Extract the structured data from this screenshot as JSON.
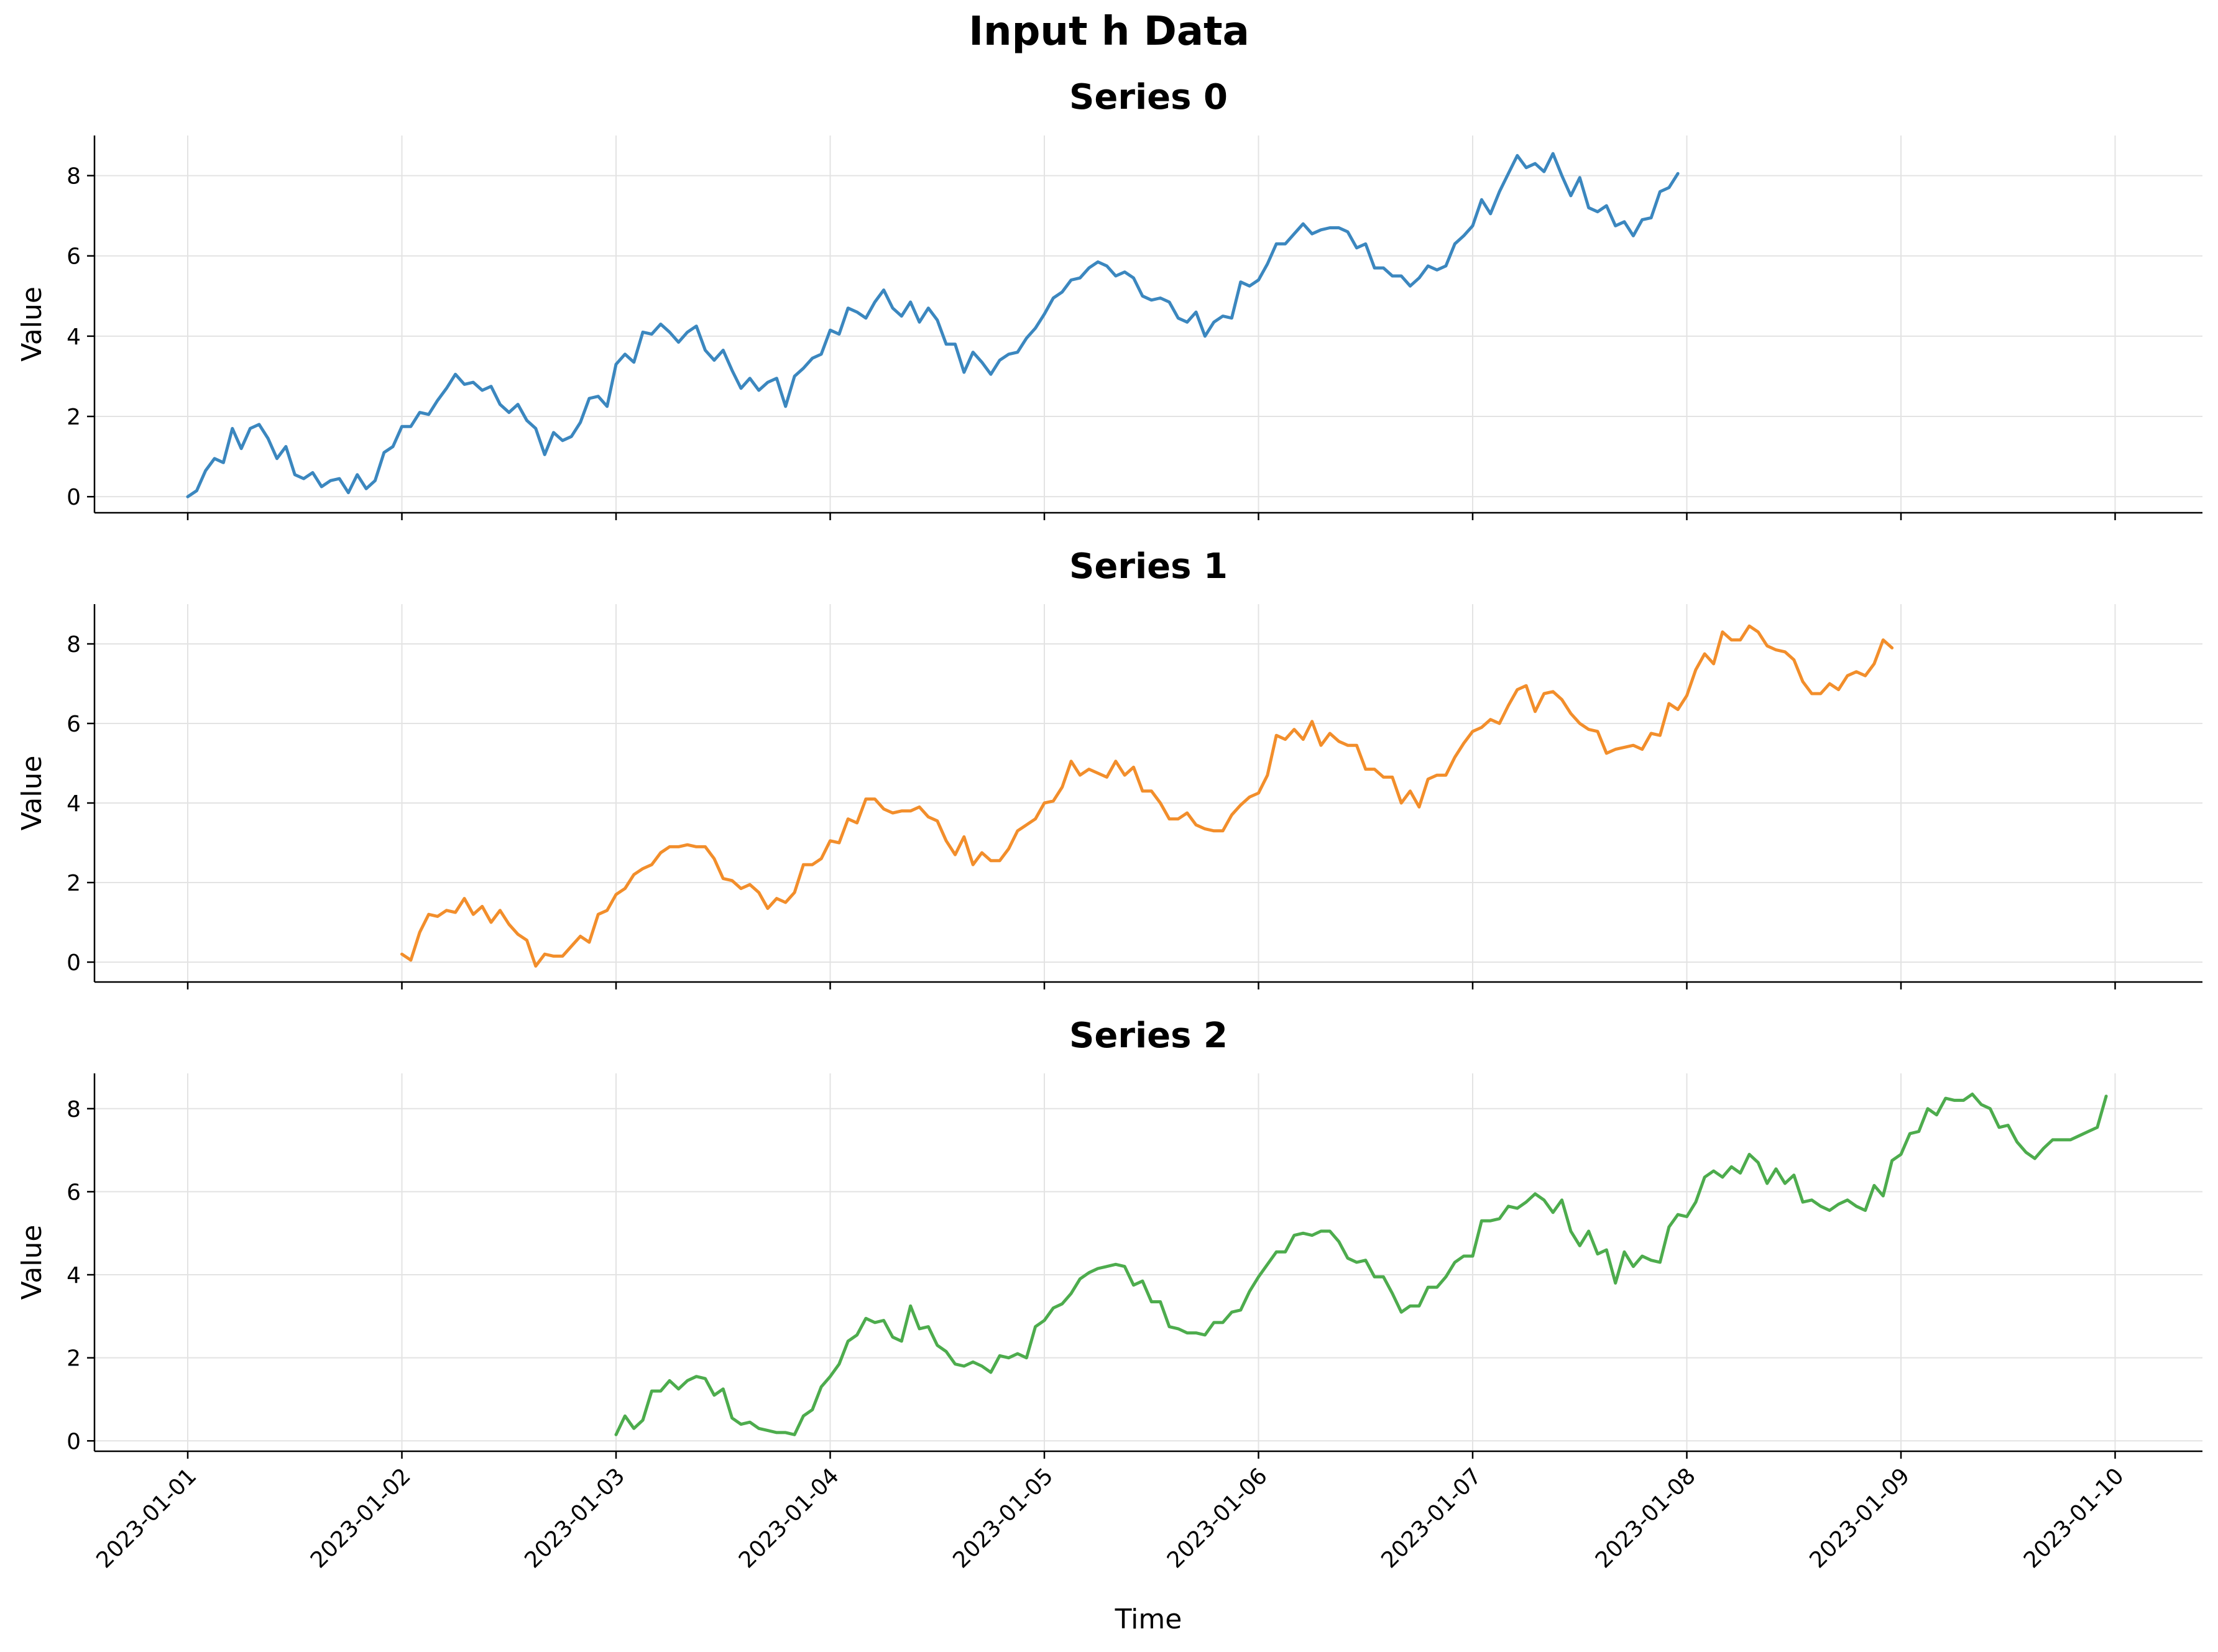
{
  "figure": {
    "suptitle": "Input h Data"
  },
  "chart_data": [
    {
      "type": "line",
      "title": "Series 0",
      "xlabel": "",
      "ylabel": "Value",
      "color": "#3b87bf",
      "x_start": "2023-01-01",
      "x_step_hours": 1,
      "ylim": [
        -0.4,
        9.0
      ],
      "yticks": [
        "0",
        "2",
        "4",
        "6",
        "8"
      ],
      "xticks": [
        "2023-01-01",
        "2023-01-02",
        "2023-01-03",
        "2023-01-04",
        "2023-01-05",
        "2023-01-06",
        "2023-01-07",
        "2023-01-08",
        "2023-01-09",
        "2023-01-10"
      ],
      "grid": true,
      "values": [
        0.0,
        0.15,
        0.65,
        0.95,
        0.85,
        1.7,
        1.2,
        1.7,
        1.8,
        1.45,
        0.95,
        1.25,
        0.55,
        0.45,
        0.6,
        0.25,
        0.4,
        0.45,
        0.1,
        0.55,
        0.2,
        0.4,
        1.1,
        1.25,
        1.75,
        1.75,
        2.1,
        2.05,
        2.4,
        2.7,
        3.05,
        2.8,
        2.85,
        2.65,
        2.75,
        2.3,
        2.1,
        2.3,
        1.9,
        1.7,
        1.05,
        1.6,
        1.4,
        1.5,
        1.85,
        2.45,
        2.5,
        2.25,
        3.3,
        3.55,
        3.35,
        4.1,
        4.05,
        4.3,
        4.1,
        3.85,
        4.1,
        4.25,
        3.65,
        3.4,
        3.65,
        3.15,
        2.7,
        2.95,
        2.65,
        2.85,
        2.95,
        2.25,
        3.0,
        3.2,
        3.45,
        3.55,
        4.15,
        4.05,
        4.7,
        4.6,
        4.45,
        4.85,
        5.15,
        4.7,
        4.5,
        4.85,
        4.35,
        4.7,
        4.4,
        3.8,
        3.8,
        3.1,
        3.6,
        3.35,
        3.05,
        3.4,
        3.55,
        3.6,
        3.95,
        4.2,
        4.55,
        4.95,
        5.1,
        5.4,
        5.45,
        5.7,
        5.85,
        5.75,
        5.5,
        5.6,
        5.45,
        5.0,
        4.9,
        4.95,
        4.85,
        4.45,
        4.35,
        4.6,
        4.0,
        4.35,
        4.5,
        4.45,
        5.35,
        5.25,
        5.4,
        5.8,
        6.3,
        6.3,
        6.55,
        6.8,
        6.55,
        6.65,
        6.7,
        6.7,
        6.6,
        6.2,
        6.3,
        5.7,
        5.7,
        5.5,
        5.5,
        5.25,
        5.45,
        5.75,
        5.65,
        5.75,
        6.3,
        6.5,
        6.75,
        7.4,
        7.05,
        7.6,
        8.05,
        8.5,
        8.2,
        8.3,
        8.1,
        8.55,
        8.0,
        7.5,
        7.95,
        7.2,
        7.1,
        7.25,
        6.75,
        6.85,
        6.5,
        6.9,
        6.95,
        7.6,
        7.7,
        8.05
      ]
    },
    {
      "type": "line",
      "title": "Series 1",
      "xlabel": "",
      "ylabel": "Value",
      "color": "#f28e2b",
      "x_start": "2023-01-02",
      "x_step_hours": 1,
      "ylim": [
        -0.5,
        9.0
      ],
      "yticks": [
        "0",
        "2",
        "4",
        "6",
        "8"
      ],
      "xticks": [
        "2023-01-01",
        "2023-01-02",
        "2023-01-03",
        "2023-01-04",
        "2023-01-05",
        "2023-01-06",
        "2023-01-07",
        "2023-01-08",
        "2023-01-09",
        "2023-01-10"
      ],
      "grid": true,
      "values": [
        0.2,
        0.05,
        0.75,
        1.2,
        1.15,
        1.3,
        1.25,
        1.6,
        1.2,
        1.4,
        1.0,
        1.3,
        0.95,
        0.7,
        0.55,
        -0.1,
        0.2,
        0.15,
        0.15,
        0.4,
        0.65,
        0.5,
        1.2,
        1.3,
        1.7,
        1.85,
        2.2,
        2.35,
        2.45,
        2.75,
        2.9,
        2.9,
        2.95,
        2.9,
        2.9,
        2.6,
        2.1,
        2.05,
        1.85,
        1.95,
        1.75,
        1.35,
        1.6,
        1.5,
        1.75,
        2.45,
        2.45,
        2.6,
        3.05,
        3.0,
        3.6,
        3.5,
        4.1,
        4.1,
        3.85,
        3.75,
        3.8,
        3.8,
        3.9,
        3.65,
        3.55,
        3.05,
        2.7,
        3.15,
        2.45,
        2.75,
        2.55,
        2.55,
        2.85,
        3.3,
        3.45,
        3.6,
        4.0,
        4.05,
        4.4,
        5.05,
        4.7,
        4.85,
        4.75,
        4.65,
        5.05,
        4.7,
        4.9,
        4.3,
        4.3,
        4.0,
        3.6,
        3.6,
        3.75,
        3.45,
        3.35,
        3.3,
        3.3,
        3.7,
        3.95,
        4.15,
        4.25,
        4.7,
        5.7,
        5.6,
        5.85,
        5.6,
        6.05,
        5.45,
        5.75,
        5.55,
        5.45,
        5.45,
        4.85,
        4.85,
        4.65,
        4.65,
        4.0,
        4.3,
        3.9,
        4.6,
        4.7,
        4.7,
        5.15,
        5.5,
        5.8,
        5.9,
        6.1,
        6.0,
        6.45,
        6.85,
        6.95,
        6.3,
        6.75,
        6.8,
        6.6,
        6.25,
        6.0,
        5.85,
        5.8,
        5.25,
        5.35,
        5.4,
        5.45,
        5.35,
        5.75,
        5.7,
        6.5,
        6.35,
        6.7,
        7.35,
        7.75,
        7.5,
        8.3,
        8.1,
        8.1,
        8.45,
        8.3,
        7.95,
        7.85,
        7.8,
        7.6,
        7.05,
        6.75,
        6.75,
        7.0,
        6.85,
        7.2,
        7.3,
        7.2,
        7.5,
        8.1,
        7.9
      ]
    },
    {
      "type": "line",
      "title": "Series 2",
      "xlabel": "Time",
      "ylabel": "Value",
      "color": "#4dac4d",
      "x_start": "2023-01-03",
      "x_step_hours": 1,
      "ylim": [
        -0.25,
        8.85
      ],
      "yticks": [
        "0",
        "2",
        "4",
        "6",
        "8"
      ],
      "xticks": [
        "2023-01-01",
        "2023-01-02",
        "2023-01-03",
        "2023-01-04",
        "2023-01-05",
        "2023-01-06",
        "2023-01-07",
        "2023-01-08",
        "2023-01-09",
        "2023-01-10"
      ],
      "grid": true,
      "values": [
        0.15,
        0.6,
        0.3,
        0.5,
        1.2,
        1.2,
        1.45,
        1.25,
        1.45,
        1.55,
        1.5,
        1.1,
        1.25,
        0.55,
        0.4,
        0.45,
        0.3,
        0.25,
        0.2,
        0.2,
        0.15,
        0.6,
        0.75,
        1.3,
        1.55,
        1.85,
        2.4,
        2.55,
        2.95,
        2.85,
        2.9,
        2.5,
        2.4,
        3.25,
        2.7,
        2.75,
        2.3,
        2.15,
        1.85,
        1.8,
        1.9,
        1.8,
        1.65,
        2.05,
        2.0,
        2.1,
        2.0,
        2.75,
        2.9,
        3.2,
        3.3,
        3.55,
        3.9,
        4.05,
        4.15,
        4.2,
        4.25,
        4.2,
        3.75,
        3.85,
        3.35,
        3.35,
        2.75,
        2.7,
        2.6,
        2.6,
        2.55,
        2.85,
        2.85,
        3.1,
        3.15,
        3.6,
        3.95,
        4.25,
        4.55,
        4.55,
        4.95,
        5.0,
        4.95,
        5.05,
        5.05,
        4.8,
        4.4,
        4.3,
        4.35,
        3.95,
        3.95,
        3.55,
        3.1,
        3.25,
        3.25,
        3.7,
        3.7,
        3.95,
        4.3,
        4.45,
        4.45,
        5.3,
        5.3,
        5.35,
        5.65,
        5.6,
        5.75,
        5.95,
        5.8,
        5.5,
        5.8,
        5.05,
        4.7,
        5.05,
        4.5,
        4.6,
        3.8,
        4.55,
        4.2,
        4.45,
        4.35,
        4.3,
        5.15,
        5.45,
        5.4,
        5.75,
        6.35,
        6.5,
        6.35,
        6.6,
        6.45,
        6.9,
        6.7,
        6.2,
        6.55,
        6.2,
        6.4,
        5.75,
        5.8,
        5.65,
        5.55,
        5.7,
        5.8,
        5.65,
        5.55,
        6.15,
        5.9,
        6.75,
        6.9,
        7.4,
        7.45,
        8.0,
        7.85,
        8.25,
        8.2,
        8.2,
        8.35,
        8.1,
        8.0,
        7.55,
        7.6,
        7.2,
        6.95,
        6.8,
        7.05,
        7.25,
        7.25,
        7.25,
        7.35,
        7.45,
        7.55,
        8.3
      ]
    }
  ]
}
